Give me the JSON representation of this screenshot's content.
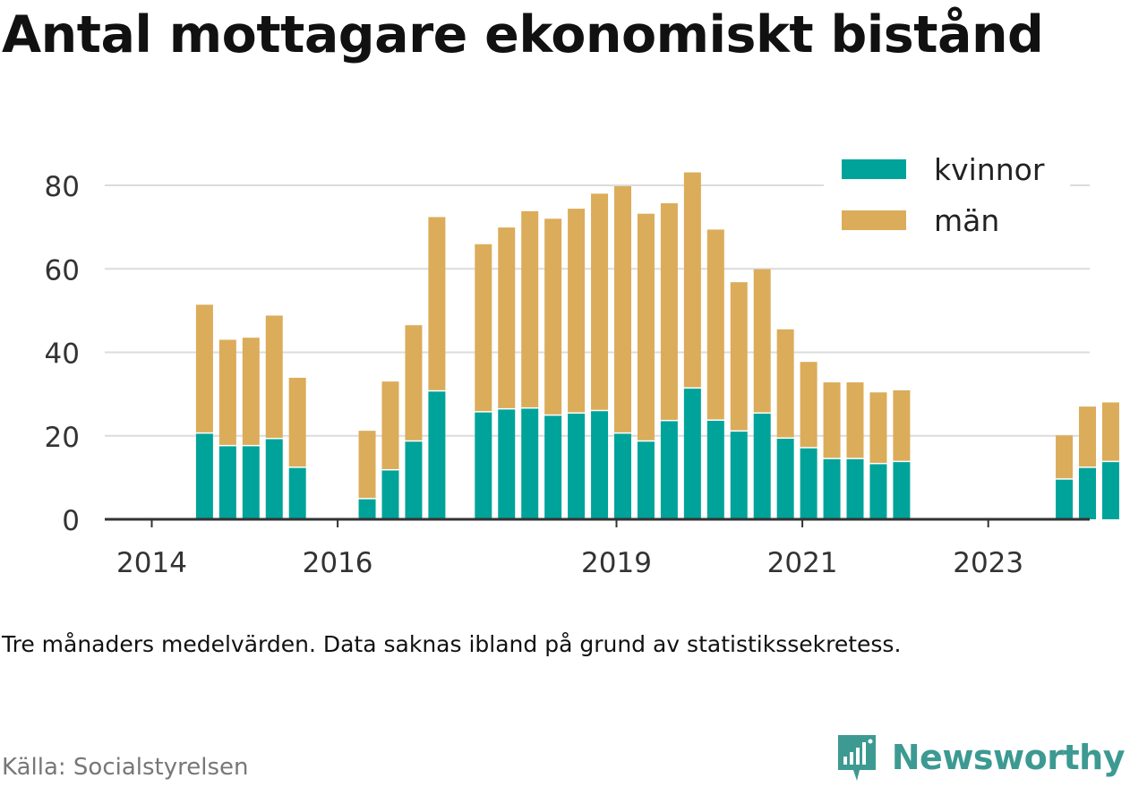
{
  "title": "Antal mottagare ekonomiskt bistånd",
  "note": "Tre månaders medelvärden. Data saknas ibland på grund av statistikssekretess.",
  "source": "Källa: Socialstyrelsen",
  "brand": {
    "name": "Newsworthy",
    "icon": "newsworthy-logo-icon"
  },
  "chart_data": {
    "type": "bar",
    "stacked": true,
    "ylim": [
      0,
      90
    ],
    "yticks": [
      0,
      20,
      40,
      60,
      80
    ],
    "grid": true,
    "legend": {
      "position": "top-right"
    },
    "series": [
      {
        "name": "kvinnor",
        "color": "#00a39a",
        "values": [
          null,
          null,
          20.5,
          17.5,
          17.5,
          19.2,
          12.3,
          null,
          null,
          4.8,
          11.7,
          18.6,
          30.6,
          null,
          25.6,
          26.3,
          26.5,
          24.8,
          25.3,
          25.9,
          20.5,
          18.6,
          23.5,
          31.3,
          23.6,
          21,
          25.3,
          19.3,
          17,
          14.4,
          14.4,
          13.2,
          13.7,
          null,
          null,
          null,
          null,
          null,
          null,
          9.5,
          12.3,
          13.7
        ]
      },
      {
        "name": "män",
        "color": "#dbac5a",
        "values": [
          null,
          null,
          30.9,
          25.5,
          26,
          29.6,
          21.6,
          null,
          null,
          16.4,
          21.3,
          27.9,
          41.8,
          null,
          40.3,
          43.6,
          47.3,
          47.2,
          49.1,
          52.1,
          59.3,
          54.6,
          52.2,
          51.8,
          45.8,
          35.8,
          34.6,
          26.2,
          20.7,
          18.4,
          18.4,
          17.2,
          17.2,
          null,
          null,
          null,
          null,
          null,
          null,
          10.6,
          14.7,
          14.3
        ]
      }
    ],
    "x_ticks": [
      {
        "label": "2014",
        "index": 0
      },
      {
        "label": "2016",
        "index": 8
      },
      {
        "label": "2019",
        "index": 20
      },
      {
        "label": "2021",
        "index": 28
      },
      {
        "label": "2023",
        "index": 36
      }
    ]
  }
}
